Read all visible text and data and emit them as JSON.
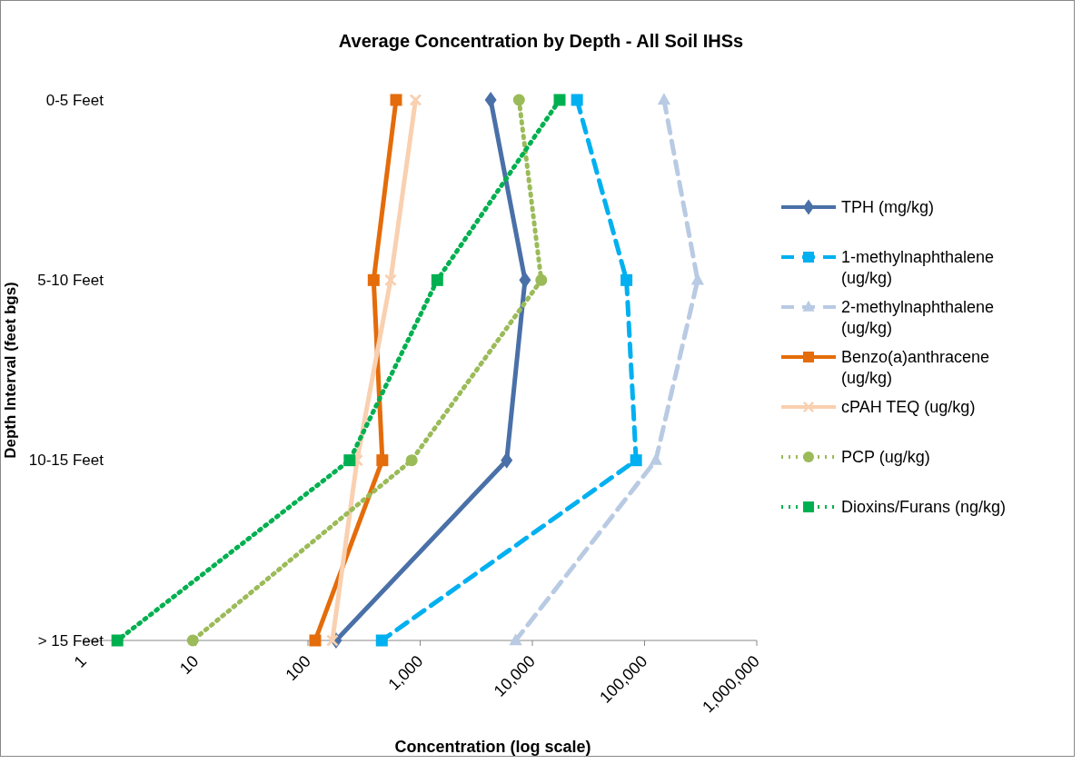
{
  "chart_data": {
    "type": "line",
    "orientation": "horizontal",
    "title": "Average Concentration by Depth - All Soil IHSs",
    "xlabel": "Concentration (log scale)",
    "ylabel": "Depth Interval (feet bgs)",
    "categories": [
      "0-5 Feet",
      "5-10 Feet",
      "10-15 Feet",
      "> 15 Feet"
    ],
    "log": "x",
    "xlim": [
      1,
      1000000
    ],
    "xticks": [
      1,
      10,
      100,
      {
        "value": 1000,
        "label": "1,000"
      },
      {
        "value": 10000,
        "label": "10,000"
      },
      {
        "value": 100000,
        "label": "100,000"
      },
      {
        "value": 1000000,
        "label": "1,000,000"
      }
    ],
    "grid": false,
    "legend": "right",
    "series": [
      {
        "name": "TPH (mg/kg)",
        "color": "#4a70a8",
        "marker": "diamond",
        "line_style": "solid",
        "values": [
          4250,
          8600,
          5900,
          178
        ]
      },
      {
        "name": "1-methylnaphthalene (ug/kg)",
        "color": "#00b0f0",
        "marker": "square",
        "line_style": "dashed",
        "values": [
          25000,
          69000,
          84000,
          455
        ]
      },
      {
        "name": "2-methylnaphthalene (ug/kg)",
        "color": "#b9cae3",
        "marker": "triangle",
        "line_style": "dashed",
        "values": [
          149000,
          297000,
          126000,
          7100
        ]
      },
      {
        "name": "Benzo(a)anthracene (ug/kg)",
        "color": "#e46c0a",
        "marker": "square",
        "line_style": "solid",
        "values": [
          610,
          385,
          460,
          116
        ]
      },
      {
        "name": "cPAH TEQ (ug/kg)",
        "color": "#f9d0b0",
        "marker": "cross",
        "line_style": "solid",
        "values": [
          910,
          545,
          274,
          165
        ]
      },
      {
        "name": "PCP (ug/kg)",
        "color": "#9bbb59",
        "marker": "circle",
        "line_style": "dotted",
        "values": [
          7600,
          12000,
          840,
          9.4
        ]
      },
      {
        "name": "Dioxins/Furans (ng/kg)",
        "color": "#00b050",
        "marker": "square",
        "line_style": "dotted",
        "values": [
          17500,
          1420,
          235,
          2
        ]
      }
    ]
  }
}
